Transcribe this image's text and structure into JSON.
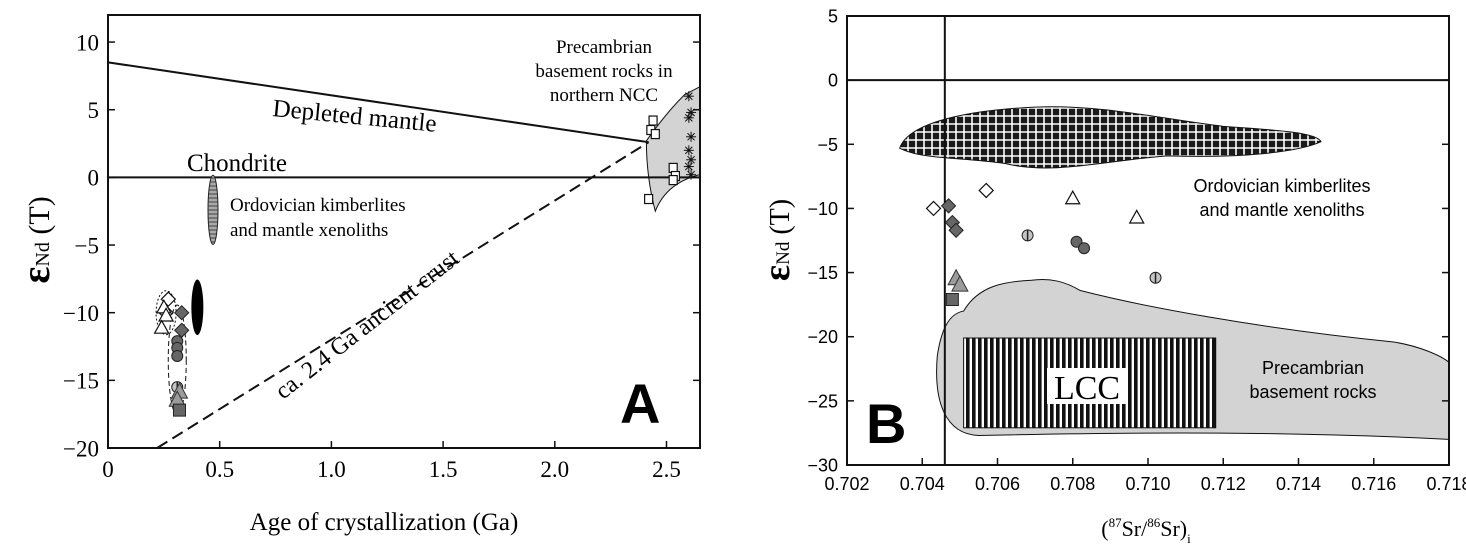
{
  "colors": {
    "field_fill": "#d3d3d4",
    "marker_gray": "#9b9b9b",
    "marker_dark": "#666666",
    "ink": "#111111"
  },
  "chart_data": [
    {
      "panel": "A",
      "type": "scatter",
      "xlabel": "Age of crystallization (Ga)",
      "ylabel_symbol": "ε",
      "ylabel_sub": "Nd",
      "ylabel_tail": " (T)",
      "xlim": [
        0,
        2.65
      ],
      "ylim": [
        -20,
        12
      ],
      "x_ticks": [
        0,
        0.5,
        1.0,
        1.5,
        2.0,
        2.5
      ],
      "x_tick_labels": [
        "0",
        "0.5",
        "1.0",
        "1.5",
        "2.0",
        "2.5"
      ],
      "y_ticks": [
        10,
        5,
        0,
        -5,
        -10,
        -15,
        -20
      ],
      "y_tick_labels": [
        "10",
        "5",
        "0",
        "−5",
        "−10",
        "−15",
        "−20"
      ],
      "reference_lines": [
        {
          "label": "Depleted mantle",
          "x": [
            0,
            2.42
          ],
          "y": [
            8.5,
            2.6
          ],
          "style": "solid"
        },
        {
          "label": "Chondrite",
          "x": [
            0,
            2.65
          ],
          "y": [
            0,
            0
          ],
          "style": "solid"
        },
        {
          "label": "ca. 2.4 Ga ancient crust",
          "x": [
            0.22,
            2.42
          ],
          "y": [
            -20,
            2.6
          ],
          "style": "dashed"
        }
      ],
      "annotations": {
        "precambrian": [
          "Precambrian",
          "basement rocks in",
          "northern NCC"
        ],
        "kimberlites": [
          "Ordovician kimberlites",
          "and mantle xenoliths"
        ],
        "panel_label": "A"
      },
      "series": [
        {
          "name": "Ordovician kimberlites and mantle xenoliths",
          "marker": "ellipse-hatched",
          "x": [
            0.47
          ],
          "y": [
            -2.4
          ],
          "spread_y": [
            -5.0,
            0.1
          ]
        },
        {
          "marker": "ellipse-black",
          "x": [
            0.4
          ],
          "y": [
            -9.6
          ],
          "spread_y": [
            -11.6,
            -7.5
          ]
        },
        {
          "marker": "diamond-open",
          "x": [
            0.27,
            0.26
          ],
          "y": [
            -9.0,
            -10.0
          ]
        },
        {
          "marker": "triangle-open",
          "x": [
            0.25,
            0.26,
            0.24
          ],
          "y": [
            -9.6,
            -10.2,
            -11.1
          ]
        },
        {
          "marker": "diamond-dark",
          "x": [
            0.33,
            0.33
          ],
          "y": [
            -10.0,
            -11.3
          ]
        },
        {
          "marker": "circle-gray",
          "x": [
            0.31,
            0.31,
            0.31
          ],
          "y": [
            -12.1,
            -12.6,
            -13.2
          ]
        },
        {
          "marker": "circle-halfbar",
          "x": [
            0.31
          ],
          "y": [
            -15.5
          ]
        },
        {
          "marker": "triangle-gray",
          "x": [
            0.32,
            0.31
          ],
          "y": [
            -15.8,
            -16.4
          ]
        },
        {
          "marker": "square-gray",
          "x": [
            0.32
          ],
          "y": [
            -17.2
          ]
        },
        {
          "marker": "square-open",
          "x": [
            2.44,
            2.43,
            2.45,
            2.53,
            2.54,
            2.53,
            2.42
          ],
          "y": [
            4.2,
            3.5,
            3.2,
            0.7,
            0.1,
            -0.2,
            -1.6
          ]
        },
        {
          "marker": "asterisk",
          "x": [
            2.6,
            2.61,
            2.6,
            2.61,
            2.6,
            2.61,
            2.6,
            2.61
          ],
          "y": [
            6.0,
            4.8,
            4.4,
            3.0,
            2.0,
            1.3,
            0.8,
            0.2
          ]
        }
      ]
    },
    {
      "panel": "B",
      "type": "scatter",
      "xlabel": "(87Sr/86Sr)i",
      "xlabel_parts": [
        "(",
        "87",
        "Sr/",
        "86",
        "Sr)",
        "i"
      ],
      "ylabel_symbol": "ε",
      "ylabel_sub": "Nd",
      "ylabel_tail": " (T)",
      "xlim": [
        0.702,
        0.718
      ],
      "ylim": [
        -30,
        5
      ],
      "x_ticks": [
        0.702,
        0.704,
        0.706,
        0.708,
        0.71,
        0.712,
        0.714,
        0.716,
        0.718
      ],
      "x_tick_labels": [
        "0.702",
        "0.704",
        "0.706",
        "0.708",
        "0.710",
        "0.712",
        "0.714",
        "0.716",
        "0.718"
      ],
      "y_ticks": [
        5,
        0,
        -5,
        -10,
        -15,
        -20,
        -25,
        -30
      ],
      "y_tick_labels": [
        "5",
        "0",
        "−5",
        "−10",
        "−15",
        "−20",
        "−25",
        "−30"
      ],
      "reference_lines": [
        {
          "x": [
            0.702,
            0.718
          ],
          "y": [
            0,
            0
          ],
          "style": "solid"
        },
        {
          "x": [
            0.7046,
            0.7046
          ],
          "y": [
            5,
            -30
          ],
          "style": "solid"
        }
      ],
      "annotations": {
        "kimberlites": [
          "Ordovician kimberlites",
          "and mantle xenoliths"
        ],
        "precambrian": [
          "Precambrian",
          "basement rocks"
        ],
        "lcc": "LCC",
        "panel_label": "B"
      },
      "series": [
        {
          "marker": "diamond-open",
          "x": [
            0.7043,
            0.7057
          ],
          "y": [
            -10.0,
            -8.6
          ]
        },
        {
          "marker": "diamond-dark",
          "x": [
            0.7047,
            0.7048,
            0.7049
          ],
          "y": [
            -9.8,
            -11.1,
            -11.7
          ]
        },
        {
          "marker": "triangle-open",
          "x": [
            0.708,
            0.7097
          ],
          "y": [
            -9.2,
            -10.7
          ]
        },
        {
          "marker": "circle-halfbar",
          "x": [
            0.7068,
            0.7102
          ],
          "y": [
            -12.1,
            -15.4
          ]
        },
        {
          "marker": "circle-gray",
          "x": [
            0.7081,
            0.7083
          ],
          "y": [
            -12.6,
            -13.1
          ]
        },
        {
          "marker": "triangle-gray",
          "x": [
            0.7049,
            0.705
          ],
          "y": [
            -15.4,
            -15.9
          ]
        },
        {
          "marker": "square-gray",
          "x": [
            0.7048
          ],
          "y": [
            -17.1
          ]
        }
      ]
    }
  ]
}
